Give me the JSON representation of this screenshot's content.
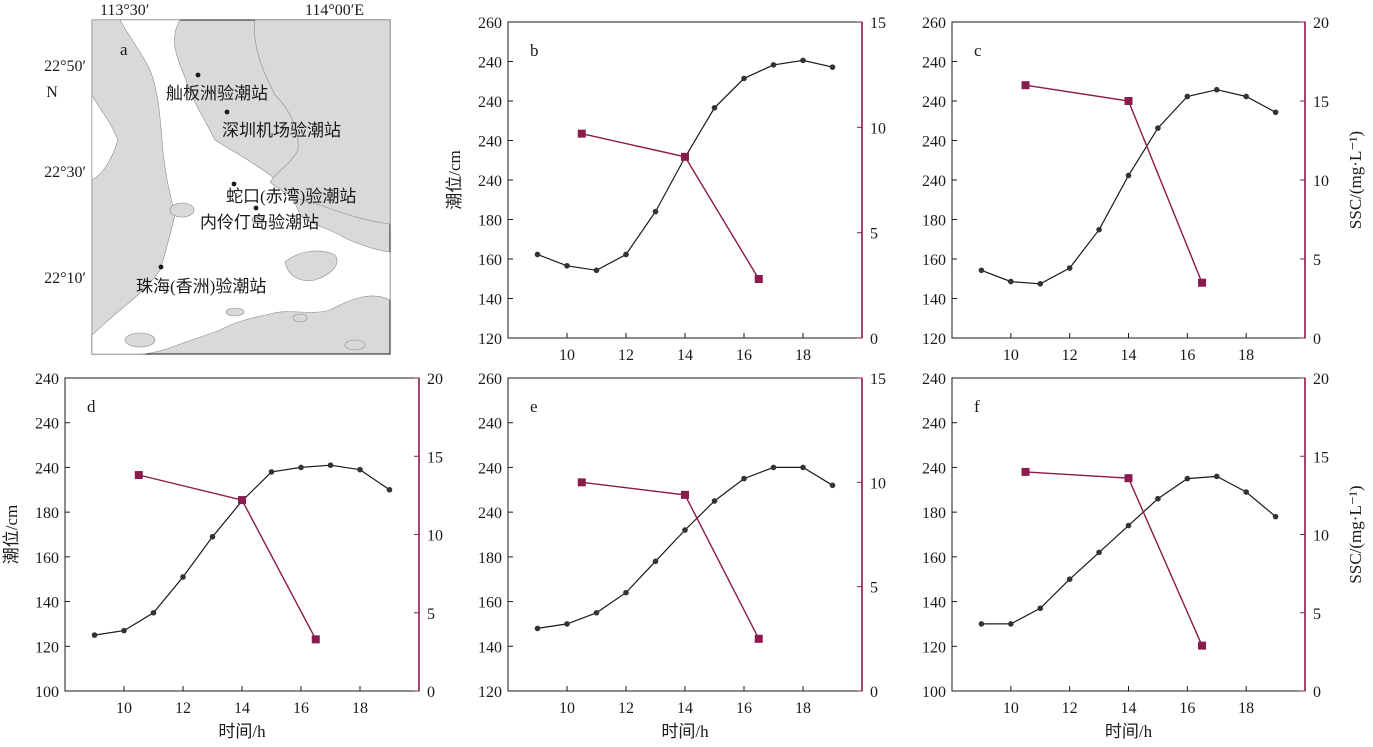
{
  "colors": {
    "tide": "#1a1a1a",
    "ssc": "#8b1a4d",
    "land": "#d9d9d9",
    "sea": "#ffffff"
  },
  "map": {
    "label": "a",
    "lon_labels": [
      "113°30′",
      "114°00′E"
    ],
    "lat_labels": [
      "22°50′",
      "N",
      "22°30′",
      "22°10′"
    ],
    "stations": [
      {
        "name": "舢板洲验潮站"
      },
      {
        "name": "深圳机场验潮站"
      },
      {
        "name": "蛇口(赤湾)验潮站"
      },
      {
        "name": "内伶仃岛验潮站"
      },
      {
        "name": "珠海(香洲)验潮站"
      }
    ]
  },
  "chart_data": [
    {
      "label": "b",
      "type": "line",
      "x_ticks": [
        10,
        12,
        14,
        16,
        18
      ],
      "left_ticks": [
        "260",
        "240",
        "240",
        "240",
        "240",
        "180",
        "160",
        "140",
        "120"
      ],
      "right_ticks": [
        "15",
        "10",
        "5",
        "0"
      ],
      "ylabel_left": "潮位/cm",
      "ylabel_right": "",
      "xlabel": "",
      "tide": {
        "x": [
          9,
          10,
          11,
          12,
          13,
          14,
          15,
          16,
          17,
          18,
          19
        ],
        "y": [
          157,
          152,
          150,
          157,
          176,
          200,
          222,
          235,
          241,
          243,
          240
        ]
      },
      "ssc": {
        "x": [
          10.5,
          14,
          16.5
        ],
        "y": [
          9.7,
          8.6,
          2.8
        ]
      },
      "xlim": [
        8,
        20
      ],
      "ylim_left": [
        120,
        260
      ],
      "ylim_right": [
        0,
        15
      ]
    },
    {
      "label": "c",
      "type": "line",
      "x_ticks": [
        10,
        12,
        14,
        16,
        18
      ],
      "left_ticks": [
        "260",
        "240",
        "240",
        "240",
        "240",
        "180",
        "160",
        "140",
        "120"
      ],
      "right_ticks": [
        "20",
        "15",
        "10",
        "5",
        "0"
      ],
      "ylabel_left": "",
      "ylabel_right": "SSC/(mg·L⁻¹)",
      "xlabel": "",
      "tide": {
        "x": [
          9,
          10,
          11,
          12,
          13,
          14,
          15,
          16,
          17,
          18,
          19
        ],
        "y": [
          150,
          145,
          144,
          151,
          168,
          192,
          213,
          227,
          230,
          227,
          220
        ]
      },
      "ssc": {
        "x": [
          10.5,
          14,
          16.5
        ],
        "y": [
          16.0,
          15.0,
          3.5
        ]
      },
      "xlim": [
        8,
        20
      ],
      "ylim_left": [
        120,
        260
      ],
      "ylim_right": [
        0,
        20
      ]
    },
    {
      "label": "d",
      "type": "line",
      "x_ticks": [
        10,
        12,
        14,
        16,
        18
      ],
      "left_ticks": [
        "240",
        "240",
        "240",
        "180",
        "160",
        "140",
        "120",
        "100"
      ],
      "right_ticks": [
        "20",
        "15",
        "10",
        "5",
        "0"
      ],
      "ylabel_left": "潮位/cm",
      "ylabel_right": "",
      "xlabel": "时间/h",
      "tide": {
        "x": [
          9,
          10,
          11,
          12,
          13,
          14,
          15,
          16,
          17,
          18,
          19
        ],
        "y": [
          125,
          127,
          135,
          151,
          169,
          185,
          198,
          200,
          201,
          199,
          190
        ]
      },
      "ssc": {
        "x": [
          10.5,
          14,
          16.5
        ],
        "y": [
          13.8,
          12.2,
          3.3
        ]
      },
      "xlim": [
        8,
        20
      ],
      "ylim_left": [
        100,
        240
      ],
      "ylim_right": [
        0,
        20
      ]
    },
    {
      "label": "e",
      "type": "line",
      "x_ticks": [
        10,
        12,
        14,
        16,
        18
      ],
      "left_ticks": [
        "260",
        "240",
        "240",
        "240",
        "180",
        "160",
        "140",
        "120"
      ],
      "right_ticks": [
        "15",
        "10",
        "5",
        "0"
      ],
      "ylabel_left": "",
      "ylabel_right": "",
      "xlabel": "时间/h",
      "tide": {
        "x": [
          9,
          10,
          11,
          12,
          13,
          14,
          15,
          16,
          17,
          18,
          19
        ],
        "y": [
          148,
          150,
          155,
          164,
          178,
          192,
          205,
          215,
          220,
          220,
          212
        ]
      },
      "ssc": {
        "x": [
          10.5,
          14,
          16.5
        ],
        "y": [
          10.0,
          9.4,
          2.5
        ]
      },
      "xlim": [
        8,
        20
      ],
      "ylim_left": [
        120,
        260
      ],
      "ylim_right": [
        0,
        15
      ]
    },
    {
      "label": "f",
      "type": "line",
      "x_ticks": [
        10,
        12,
        14,
        16,
        18
      ],
      "left_ticks": [
        "240",
        "240",
        "240",
        "180",
        "160",
        "140",
        "120",
        "100"
      ],
      "right_ticks": [
        "20",
        "15",
        "10",
        "5",
        "0"
      ],
      "ylabel_left": "",
      "ylabel_right": "SSC/(mg·L⁻¹)",
      "xlabel": "时间/h",
      "tide": {
        "x": [
          9,
          10,
          11,
          12,
          13,
          14,
          15,
          16,
          17,
          18,
          19
        ],
        "y": [
          130,
          130,
          137,
          150,
          162,
          174,
          186,
          195,
          196,
          189,
          178
        ]
      },
      "ssc": {
        "x": [
          10.5,
          14,
          16.5
        ],
        "y": [
          14.0,
          13.6,
          2.9
        ]
      },
      "xlim": [
        8,
        20
      ],
      "ylim_left": [
        100,
        240
      ],
      "ylim_right": [
        0,
        20
      ]
    }
  ]
}
